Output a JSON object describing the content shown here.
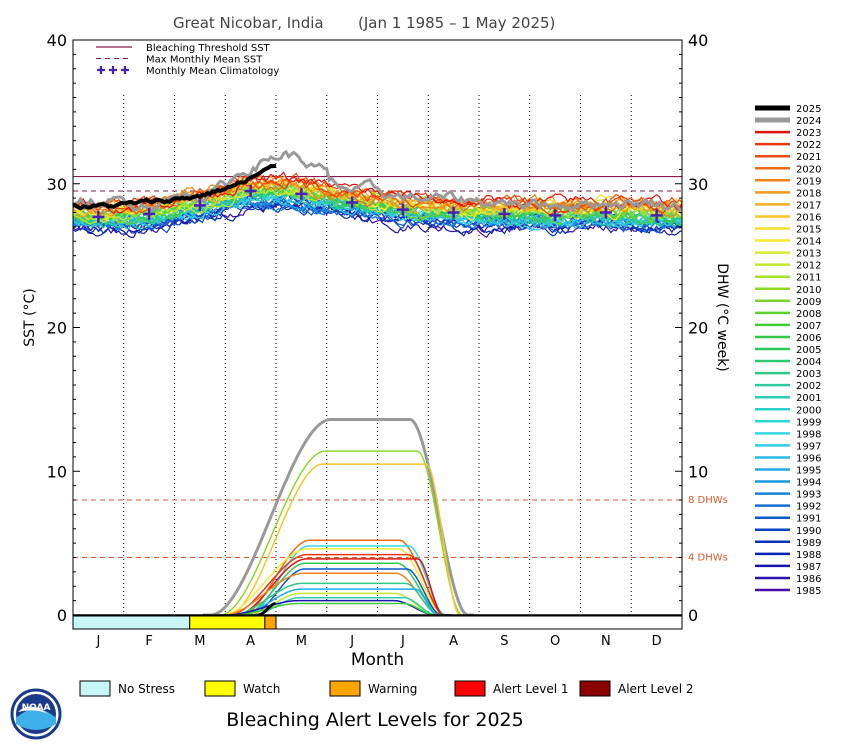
{
  "chart_data": {
    "type": "line",
    "title": "Great Nicobar, India",
    "date_range": "(Jan 1 1985 – 1 May 2025)",
    "xlabel": "Month",
    "ylabel_left": "SST (°C)",
    "ylabel_right": "DHW (°C week)",
    "months": [
      "J",
      "F",
      "M",
      "A",
      "M",
      "J",
      "J",
      "A",
      "S",
      "O",
      "N",
      "D"
    ],
    "ylim": [
      0,
      40
    ],
    "yticks": [
      0,
      10,
      20,
      30,
      40
    ],
    "legend_placement": "top-left",
    "legend": [
      {
        "label": "Bleaching Threshold SST",
        "style": "solid",
        "color": "#8b1a4a"
      },
      {
        "label": "Max Monthly Mean SST",
        "style": "dashed",
        "color": "#8b1a4a"
      },
      {
        "label": "Monthly Mean Climatology",
        "style": "plus",
        "color": "#4b1fb3"
      }
    ],
    "bleaching_threshold_sst": 30.5,
    "max_monthly_mean_sst": 29.5,
    "climatology": [
      27.7,
      27.9,
      28.5,
      29.5,
      29.3,
      28.7,
      28.2,
      28.0,
      27.9,
      27.8,
      28.0,
      27.8
    ],
    "dhw_reference_lines": [
      {
        "label": "8 DHWs",
        "value": 8,
        "color": "#d85a2a"
      },
      {
        "label": "4 DHWs",
        "value": 4,
        "color": "#d85a2a"
      }
    ],
    "years": [
      "2025",
      "2024",
      "2023",
      "2022",
      "2021",
      "2020",
      "2019",
      "2018",
      "2017",
      "2016",
      "2015",
      "2014",
      "2013",
      "2012",
      "2011",
      "2010",
      "2009",
      "2008",
      "2007",
      "2006",
      "2005",
      "2004",
      "2003",
      "2002",
      "2001",
      "2000",
      "1999",
      "1998",
      "1997",
      "1996",
      "1995",
      "1994",
      "1993",
      "1992",
      "1991",
      "1990",
      "1989",
      "1988",
      "1987",
      "1986",
      "1985"
    ],
    "year_colors": [
      "#000000",
      "#999999",
      "#e0120d",
      "#e8380d",
      "#ec4c10",
      "#ef6a14",
      "#f08318",
      "#f2961d",
      "#f4ac22",
      "#f6c52a",
      "#f7dc30",
      "#f3ea34",
      "#d8ea30",
      "#c0e62d",
      "#a7e02b",
      "#8fd82a",
      "#78d42c",
      "#5ed02e",
      "#44cc35",
      "#33c848",
      "#2ec85e",
      "#2ec873",
      "#2dc98a",
      "#2ccba1",
      "#2ccdb6",
      "#2dd0c8",
      "#30d6d6",
      "#35d8e0",
      "#30cce6",
      "#28bce8",
      "#20aae4",
      "#1a98de",
      "#1684d6",
      "#126ed0",
      "#0e58ca",
      "#0b44c2",
      "#0832ba",
      "#0a22b2",
      "#1816ad",
      "#2c12a8",
      "#4210a8"
    ],
    "dhw_peaks": [
      {
        "year": "2024",
        "peak": 13.6
      },
      {
        "year": "2010",
        "peak": 11.4
      },
      {
        "year": "2016",
        "peak": 10.5
      },
      {
        "year": "2020",
        "peak": 5.2
      },
      {
        "year": "1998",
        "peak": 4.8
      },
      {
        "year": "2014",
        "peak": 4.6
      },
      {
        "year": "2022",
        "peak": 4.2
      },
      {
        "year": "2023",
        "peak": 3.9
      },
      {
        "year": "2005",
        "peak": 3.6
      },
      {
        "year": "1991",
        "peak": 3.2
      },
      {
        "year": "2019",
        "peak": 2.9
      },
      {
        "year": "2003",
        "peak": 2.2
      },
      {
        "year": "1995",
        "peak": 1.8
      },
      {
        "year": "2012",
        "peak": 1.5
      },
      {
        "year": "2001",
        "peak": 1.2
      },
      {
        "year": "1987",
        "peak": 1.0
      },
      {
        "year": "2007",
        "peak": 0.8
      },
      {
        "year": "2025",
        "peak": 0.8
      }
    ],
    "alert_levels": [
      {
        "label": "No Stress",
        "color": "#c8f5f5"
      },
      {
        "label": "Watch",
        "color": "#ffff00"
      },
      {
        "label": "Warning",
        "color": "#ffa500"
      },
      {
        "label": "Alert Level 1",
        "color": "#ff0000"
      },
      {
        "label": "Alert Level 2",
        "color": "#8b0000"
      }
    ],
    "alert_bar_2025": [
      {
        "level": "No Stress",
        "start_month": 0,
        "end_month": 2.3
      },
      {
        "level": "Watch",
        "start_month": 2.3,
        "end_month": 3.78
      },
      {
        "level": "Warning",
        "start_month": 3.78,
        "end_month": 4.0
      }
    ],
    "footer_title": "Bleaching Alert Levels for 2025",
    "logo_text": "NOAA"
  }
}
